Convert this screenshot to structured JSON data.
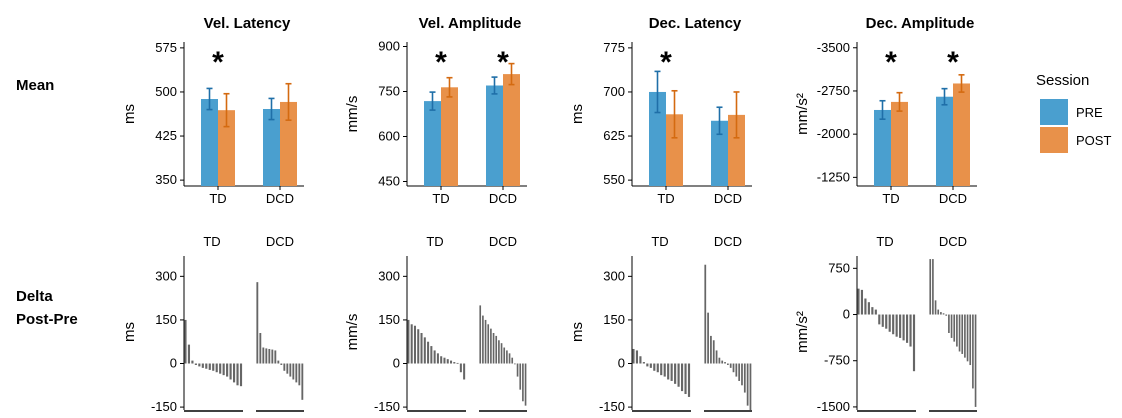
{
  "row_labels": {
    "mean": "Mean",
    "delta_line1": "Delta",
    "delta_line2": "Post-Pre"
  },
  "legend": {
    "title": "Session",
    "entries": [
      {
        "label": "PRE",
        "color": "#4A9FCF"
      },
      {
        "label": "POST",
        "color": "#E8914A"
      }
    ]
  },
  "colors": {
    "pre": "#4A9FCF",
    "post": "#E8914A",
    "pre_err": "#1F6FA8",
    "post_err": "#D46A10",
    "delta_bar": "#666666",
    "axis": "#000000"
  },
  "significance_marker": "*",
  "chart_data": [
    {
      "type": "bar",
      "panel": "mean",
      "title": "Vel. Latency",
      "ylabel": "ms",
      "categories": [
        "TD",
        "DCD"
      ],
      "ylim": [
        340,
        585
      ],
      "yticks": [
        350,
        425,
        500,
        575
      ],
      "ytick_labels": [
        "350",
        "425",
        "500",
        "575"
      ],
      "series": [
        {
          "name": "PRE",
          "values": [
            488,
            471
          ],
          "err": [
            18,
            18
          ]
        },
        {
          "name": "POST",
          "values": [
            469,
            483
          ],
          "err": [
            28,
            31
          ]
        }
      ],
      "significant": [
        true,
        false
      ]
    },
    {
      "type": "bar",
      "panel": "mean",
      "title": "Vel. Amplitude",
      "ylabel": "mm/s",
      "categories": [
        "TD",
        "DCD"
      ],
      "ylim": [
        435,
        915
      ],
      "yticks": [
        450,
        600,
        750,
        900
      ],
      "ytick_labels": [
        "450",
        "600",
        "750",
        "900"
      ],
      "series": [
        {
          "name": "PRE",
          "values": [
            718,
            770
          ],
          "err": [
            30,
            28
          ]
        },
        {
          "name": "POST",
          "values": [
            764,
            808
          ],
          "err": [
            32,
            35
          ]
        }
      ],
      "significant": [
        true,
        true
      ]
    },
    {
      "type": "bar",
      "panel": "mean",
      "title": "Dec. Latency",
      "ylabel": "ms",
      "categories": [
        "TD",
        "DCD"
      ],
      "ylim": [
        540,
        785
      ],
      "yticks": [
        550,
        625,
        700,
        775
      ],
      "ytick_labels": [
        "550",
        "625",
        "700",
        "775"
      ],
      "series": [
        {
          "name": "PRE",
          "values": [
            700,
            651
          ],
          "err": [
            35,
            23
          ]
        },
        {
          "name": "POST",
          "values": [
            662,
            661
          ],
          "err": [
            40,
            39
          ]
        }
      ],
      "significant": [
        true,
        false
      ]
    },
    {
      "type": "bar",
      "panel": "mean",
      "title": "Dec. Amplitude",
      "ylabel": "mm/s²",
      "reversed_axis": true,
      "categories": [
        "TD",
        "DCD"
      ],
      "ylim": [
        -1100,
        -3600
      ],
      "yticks": [
        -1250,
        -2000,
        -2750,
        -3500
      ],
      "ytick_labels": [
        "-1250",
        "-2000",
        "-2750",
        "-3500"
      ],
      "series": [
        {
          "name": "PRE",
          "values": [
            -2420,
            -2650
          ],
          "err": [
            160,
            140
          ]
        },
        {
          "name": "POST",
          "values": [
            -2560,
            -2880
          ],
          "err": [
            160,
            150
          ]
        }
      ],
      "significant": [
        true,
        true
      ]
    },
    {
      "type": "bar",
      "panel": "delta",
      "ylabel": "ms",
      "groups": [
        "TD",
        "DCD"
      ],
      "ylim": [
        -160,
        370
      ],
      "yticks": [
        -150,
        0,
        150,
        300
      ],
      "ytick_labels": [
        "-150",
        "0",
        "150",
        "300"
      ],
      "values": [
        [
          150,
          65,
          10,
          -5,
          -10,
          -15,
          -18,
          -22,
          -25,
          -30,
          -35,
          -40,
          -45,
          -55,
          -65,
          -75,
          -78
        ],
        [
          280,
          105,
          55,
          52,
          50,
          48,
          45,
          10,
          -5,
          -25,
          -35,
          -45,
          -55,
          -65,
          -75,
          -125
        ]
      ]
    },
    {
      "type": "bar",
      "panel": "delta",
      "ylabel": "mm/s",
      "groups": [
        "TD",
        "DCD"
      ],
      "ylim": [
        -160,
        370
      ],
      "yticks": [
        -150,
        0,
        150,
        300
      ],
      "ytick_labels": [
        "-150",
        "0",
        "150",
        "300"
      ],
      "values": [
        [
          150,
          135,
          130,
          118,
          105,
          90,
          75,
          60,
          45,
          35,
          25,
          20,
          15,
          10,
          5,
          2,
          -30,
          -55
        ],
        [
          200,
          165,
          150,
          135,
          120,
          105,
          95,
          80,
          70,
          55,
          45,
          35,
          20,
          0,
          -45,
          -90,
          -130,
          -145
        ]
      ]
    },
    {
      "type": "bar",
      "panel": "delta",
      "ylabel": "ms",
      "groups": [
        "TD",
        "DCD"
      ],
      "ylim": [
        -160,
        370
      ],
      "yticks": [
        -150,
        0,
        150,
        300
      ],
      "ytick_labels": [
        "-150",
        "0",
        "150",
        "300"
      ],
      "values": [
        [
          50,
          45,
          25,
          5,
          -10,
          -15,
          -25,
          -30,
          -40,
          -45,
          -55,
          -60,
          -70,
          -80,
          -95,
          -105,
          -115
        ],
        [
          340,
          175,
          95,
          80,
          45,
          20,
          10,
          5,
          -5,
          -15,
          -30,
          -45,
          -60,
          -75,
          -100,
          -145,
          -160
        ]
      ]
    },
    {
      "type": "bar",
      "panel": "delta",
      "ylabel": "mm/s²",
      "groups": [
        "TD",
        "DCD"
      ],
      "ylim": [
        -1550,
        950
      ],
      "yticks": [
        -1500,
        -750,
        0,
        750
      ],
      "ytick_labels": [
        "-1500",
        "-750",
        "0",
        "750"
      ],
      "values": [
        [
          420,
          400,
          260,
          200,
          120,
          80,
          -160,
          -200,
          -230,
          -280,
          -320,
          -360,
          -380,
          -420,
          -460,
          -520,
          -920
        ],
        [
          900,
          900,
          230,
          80,
          40,
          20,
          -20,
          -300,
          -380,
          -440,
          -520,
          -600,
          -640,
          -700,
          -760,
          -820,
          -1200,
          -1500
        ]
      ]
    }
  ]
}
